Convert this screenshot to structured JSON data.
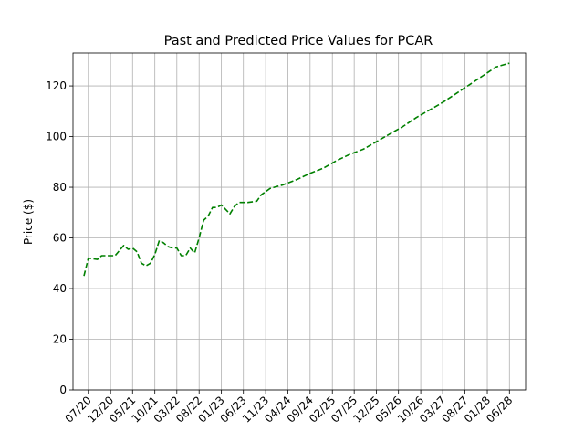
{
  "chart_data": {
    "type": "line",
    "title": "Past and Predicted Price Values for PCAR",
    "xlabel": "",
    "ylabel": "Price ($)",
    "ylim": [
      0,
      133
    ],
    "xlim": [
      "2020-03-18",
      "2028-09-20"
    ],
    "grid": true,
    "x_tick_labels": [
      "07/20",
      "12/20",
      "05/21",
      "10/21",
      "03/22",
      "08/22",
      "01/23",
      "06/23",
      "11/23",
      "04/24",
      "09/24",
      "02/25",
      "07/25",
      "12/25",
      "05/26",
      "10/26",
      "03/27",
      "08/27",
      "01/28",
      "06/28"
    ],
    "x_ticks": [
      "2020-07-01",
      "2020-12-01",
      "2021-05-01",
      "2021-10-01",
      "2022-03-01",
      "2022-08-01",
      "2023-01-01",
      "2023-06-01",
      "2023-11-01",
      "2024-04-01",
      "2024-09-01",
      "2025-02-01",
      "2025-07-01",
      "2025-12-01",
      "2026-05-01",
      "2026-10-01",
      "2027-03-01",
      "2027-08-01",
      "2028-01-01",
      "2028-06-01"
    ],
    "y_ticks": [
      0,
      20,
      40,
      60,
      80,
      100,
      120
    ],
    "series": [
      {
        "color": "#008000",
        "linestyle": "dashed",
        "x": [
          "2020-06-01",
          "2020-07-01",
          "2020-09-01",
          "2020-10-01",
          "2020-12-01",
          "2021-01-01",
          "2021-03-01",
          "2021-04-01",
          "2021-05-01",
          "2021-06-01",
          "2021-07-01",
          "2021-08-01",
          "2021-09-01",
          "2021-10-01",
          "2021-11-01",
          "2021-12-01",
          "2022-01-01",
          "2022-02-01",
          "2022-03-01",
          "2022-04-01",
          "2022-05-01",
          "2022-06-01",
          "2022-07-01",
          "2022-08-01",
          "2022-09-01",
          "2022-10-01",
          "2022-11-01",
          "2022-12-01",
          "2023-01-01",
          "2023-03-01",
          "2023-04-01",
          "2023-05-01",
          "2023-06-01",
          "2023-07-01",
          "2023-09-01",
          "2023-10-01",
          "2023-12-01",
          "2024-03-01",
          "2024-06-01",
          "2024-09-01",
          "2024-12-01",
          "2025-03-01",
          "2025-06-01",
          "2025-09-01",
          "2025-12-01",
          "2026-03-01",
          "2026-06-01",
          "2026-09-01",
          "2026-12-01",
          "2027-03-01",
          "2027-06-01",
          "2027-09-01",
          "2027-12-01",
          "2028-03-01",
          "2028-06-01"
        ],
        "y": [
          45,
          52,
          51.5,
          53,
          53,
          53,
          57,
          55.5,
          56,
          54.5,
          50,
          49,
          50,
          53.5,
          59,
          58,
          56.5,
          56,
          56,
          53,
          53,
          56,
          54,
          60,
          67,
          68.5,
          72,
          72,
          73,
          69.5,
          72.5,
          74,
          74,
          74,
          74.5,
          77,
          79.5,
          81,
          83,
          85.5,
          87.5,
          90.5,
          93,
          95,
          98,
          101,
          104,
          107.5,
          110.5,
          113.5,
          117,
          120.5,
          124,
          127.5,
          129
        ]
      }
    ]
  }
}
